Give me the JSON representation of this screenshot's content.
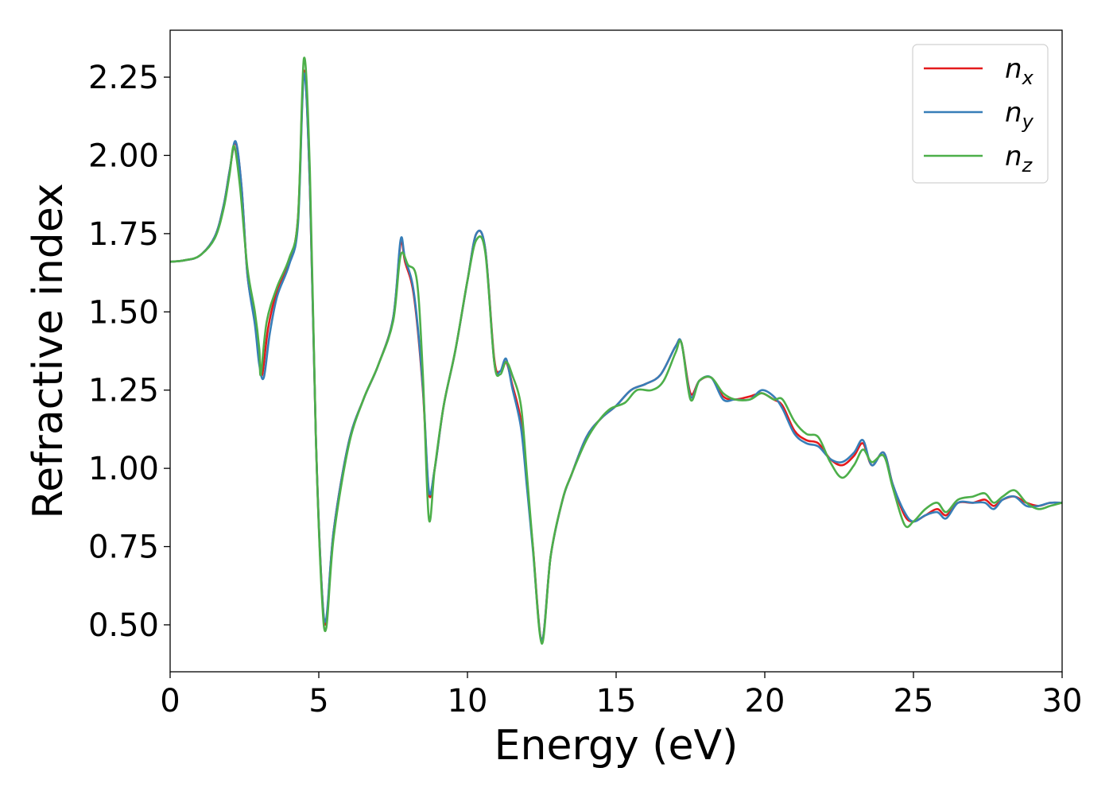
{
  "chart_data": {
    "type": "line",
    "xlabel": "Energy (eV)",
    "ylabel": "Refractive index",
    "xlim": [
      0,
      30
    ],
    "ylim": [
      0.35,
      2.4
    ],
    "xticks": [
      0,
      5,
      10,
      15,
      20,
      25,
      30
    ],
    "xtick_labels": [
      "0",
      "5",
      "10",
      "15",
      "20",
      "25",
      "30"
    ],
    "yticks": [
      0.5,
      0.75,
      1.0,
      1.25,
      1.5,
      1.75,
      2.0,
      2.25
    ],
    "ytick_labels": [
      "0.50",
      "0.75",
      "1.00",
      "1.25",
      "1.50",
      "1.75",
      "2.00",
      "2.25"
    ],
    "grid": false,
    "legend_position": "top-right",
    "series": [
      {
        "name": "n_x",
        "symbol": "n",
        "subscript": "x",
        "color": "#e41a1c",
        "points": [
          [
            0,
            1.66
          ],
          [
            0.5,
            1.665
          ],
          [
            1.0,
            1.68
          ],
          [
            1.5,
            1.74
          ],
          [
            1.8,
            1.84
          ],
          [
            2.0,
            1.95
          ],
          [
            2.2,
            2.04
          ],
          [
            2.4,
            1.9
          ],
          [
            2.6,
            1.62
          ],
          [
            2.85,
            1.47
          ],
          [
            3.0,
            1.34
          ],
          [
            3.1,
            1.3
          ],
          [
            3.3,
            1.45
          ],
          [
            3.6,
            1.57
          ],
          [
            4.0,
            1.66
          ],
          [
            4.3,
            1.8
          ],
          [
            4.5,
            2.27
          ],
          [
            4.7,
            1.9
          ],
          [
            4.9,
            1.1
          ],
          [
            5.1,
            0.62
          ],
          [
            5.25,
            0.51
          ],
          [
            5.5,
            0.8
          ],
          [
            6.0,
            1.08
          ],
          [
            6.5,
            1.22
          ],
          [
            7.0,
            1.33
          ],
          [
            7.5,
            1.48
          ],
          [
            7.75,
            1.72
          ],
          [
            7.9,
            1.66
          ],
          [
            8.2,
            1.55
          ],
          [
            8.5,
            1.25
          ],
          [
            8.7,
            0.92
          ],
          [
            8.9,
            1.0
          ],
          [
            9.2,
            1.2
          ],
          [
            9.6,
            1.38
          ],
          [
            10.0,
            1.6
          ],
          [
            10.3,
            1.75
          ],
          [
            10.6,
            1.7
          ],
          [
            10.9,
            1.35
          ],
          [
            11.1,
            1.31
          ],
          [
            11.3,
            1.34
          ],
          [
            11.5,
            1.27
          ],
          [
            11.8,
            1.15
          ],
          [
            12.0,
            0.95
          ],
          [
            12.2,
            0.75
          ],
          [
            12.5,
            0.45
          ],
          [
            12.8,
            0.72
          ],
          [
            13.2,
            0.9
          ],
          [
            13.5,
            0.98
          ],
          [
            14.0,
            1.1
          ],
          [
            14.5,
            1.16
          ],
          [
            15.0,
            1.2
          ],
          [
            15.5,
            1.25
          ],
          [
            16.0,
            1.27
          ],
          [
            16.5,
            1.3
          ],
          [
            17.0,
            1.39
          ],
          [
            17.2,
            1.4
          ],
          [
            17.5,
            1.24
          ],
          [
            17.8,
            1.28
          ],
          [
            18.2,
            1.29
          ],
          [
            18.6,
            1.23
          ],
          [
            19.0,
            1.22
          ],
          [
            19.5,
            1.23
          ],
          [
            19.9,
            1.24
          ],
          [
            20.3,
            1.22
          ],
          [
            20.6,
            1.2
          ],
          [
            21.0,
            1.12
          ],
          [
            21.4,
            1.09
          ],
          [
            21.8,
            1.08
          ],
          [
            22.2,
            1.03
          ],
          [
            22.6,
            1.01
          ],
          [
            23.0,
            1.04
          ],
          [
            23.3,
            1.08
          ],
          [
            23.6,
            1.01
          ],
          [
            24.0,
            1.05
          ],
          [
            24.3,
            0.95
          ],
          [
            24.7,
            0.85
          ],
          [
            25.0,
            0.83
          ],
          [
            25.4,
            0.85
          ],
          [
            25.8,
            0.87
          ],
          [
            26.1,
            0.85
          ],
          [
            26.5,
            0.89
          ],
          [
            27.0,
            0.89
          ],
          [
            27.4,
            0.9
          ],
          [
            27.7,
            0.88
          ],
          [
            28.0,
            0.9
          ],
          [
            28.4,
            0.91
          ],
          [
            28.8,
            0.89
          ],
          [
            29.2,
            0.88
          ],
          [
            29.6,
            0.89
          ],
          [
            30.0,
            0.89
          ]
        ]
      },
      {
        "name": "n_y",
        "symbol": "n",
        "subscript": "y",
        "color": "#377eb8",
        "points": [
          [
            0,
            1.66
          ],
          [
            0.5,
            1.665
          ],
          [
            1.0,
            1.68
          ],
          [
            1.5,
            1.74
          ],
          [
            1.8,
            1.84
          ],
          [
            2.0,
            1.95
          ],
          [
            2.2,
            2.045
          ],
          [
            2.4,
            1.9
          ],
          [
            2.6,
            1.62
          ],
          [
            2.85,
            1.46
          ],
          [
            3.0,
            1.33
          ],
          [
            3.15,
            1.29
          ],
          [
            3.35,
            1.43
          ],
          [
            3.6,
            1.55
          ],
          [
            4.0,
            1.65
          ],
          [
            4.3,
            1.78
          ],
          [
            4.5,
            2.26
          ],
          [
            4.7,
            1.9
          ],
          [
            4.9,
            1.1
          ],
          [
            5.1,
            0.62
          ],
          [
            5.25,
            0.52
          ],
          [
            5.5,
            0.8
          ],
          [
            6.0,
            1.08
          ],
          [
            6.5,
            1.22
          ],
          [
            7.0,
            1.33
          ],
          [
            7.5,
            1.48
          ],
          [
            7.75,
            1.73
          ],
          [
            7.9,
            1.67
          ],
          [
            8.2,
            1.56
          ],
          [
            8.5,
            1.26
          ],
          [
            8.7,
            0.93
          ],
          [
            8.9,
            1.0
          ],
          [
            9.2,
            1.2
          ],
          [
            9.6,
            1.38
          ],
          [
            10.0,
            1.6
          ],
          [
            10.3,
            1.75
          ],
          [
            10.6,
            1.7
          ],
          [
            10.9,
            1.34
          ],
          [
            11.1,
            1.31
          ],
          [
            11.3,
            1.35
          ],
          [
            11.5,
            1.26
          ],
          [
            11.8,
            1.13
          ],
          [
            12.0,
            0.94
          ],
          [
            12.2,
            0.74
          ],
          [
            12.5,
            0.45
          ],
          [
            12.8,
            0.72
          ],
          [
            13.2,
            0.9
          ],
          [
            13.5,
            0.98
          ],
          [
            14.0,
            1.1
          ],
          [
            14.5,
            1.16
          ],
          [
            15.0,
            1.2
          ],
          [
            15.5,
            1.25
          ],
          [
            16.0,
            1.27
          ],
          [
            16.5,
            1.3
          ],
          [
            17.0,
            1.39
          ],
          [
            17.2,
            1.4
          ],
          [
            17.5,
            1.23
          ],
          [
            17.8,
            1.28
          ],
          [
            18.2,
            1.29
          ],
          [
            18.6,
            1.22
          ],
          [
            19.0,
            1.22
          ],
          [
            19.5,
            1.22
          ],
          [
            19.9,
            1.25
          ],
          [
            20.3,
            1.23
          ],
          [
            20.6,
            1.19
          ],
          [
            21.0,
            1.11
          ],
          [
            21.4,
            1.08
          ],
          [
            21.8,
            1.07
          ],
          [
            22.2,
            1.03
          ],
          [
            22.6,
            1.02
          ],
          [
            23.0,
            1.05
          ],
          [
            23.3,
            1.09
          ],
          [
            23.6,
            1.01
          ],
          [
            24.0,
            1.05
          ],
          [
            24.3,
            0.95
          ],
          [
            24.7,
            0.86
          ],
          [
            25.0,
            0.83
          ],
          [
            25.4,
            0.85
          ],
          [
            25.8,
            0.86
          ],
          [
            26.1,
            0.84
          ],
          [
            26.5,
            0.89
          ],
          [
            27.0,
            0.89
          ],
          [
            27.4,
            0.89
          ],
          [
            27.7,
            0.87
          ],
          [
            28.0,
            0.9
          ],
          [
            28.4,
            0.91
          ],
          [
            28.8,
            0.88
          ],
          [
            29.2,
            0.88
          ],
          [
            29.6,
            0.89
          ],
          [
            30.0,
            0.89
          ]
        ]
      },
      {
        "name": "n_z",
        "symbol": "n",
        "subscript": "z",
        "color": "#4daf4a",
        "points": [
          [
            0,
            1.66
          ],
          [
            0.5,
            1.665
          ],
          [
            1.0,
            1.68
          ],
          [
            1.5,
            1.735
          ],
          [
            1.8,
            1.83
          ],
          [
            2.0,
            1.94
          ],
          [
            2.15,
            2.03
          ],
          [
            2.35,
            1.9
          ],
          [
            2.6,
            1.64
          ],
          [
            2.85,
            1.5
          ],
          [
            3.0,
            1.38
          ],
          [
            3.05,
            1.3
          ],
          [
            3.25,
            1.47
          ],
          [
            3.6,
            1.58
          ],
          [
            4.0,
            1.67
          ],
          [
            4.3,
            1.8
          ],
          [
            4.5,
            2.31
          ],
          [
            4.7,
            1.95
          ],
          [
            4.9,
            1.1
          ],
          [
            5.1,
            0.6
          ],
          [
            5.25,
            0.49
          ],
          [
            5.5,
            0.78
          ],
          [
            6.0,
            1.07
          ],
          [
            6.5,
            1.22
          ],
          [
            7.0,
            1.33
          ],
          [
            7.5,
            1.47
          ],
          [
            7.75,
            1.68
          ],
          [
            8.0,
            1.65
          ],
          [
            8.3,
            1.6
          ],
          [
            8.5,
            1.3
          ],
          [
            8.7,
            0.84
          ],
          [
            8.9,
            1.0
          ],
          [
            9.2,
            1.2
          ],
          [
            9.6,
            1.38
          ],
          [
            10.0,
            1.6
          ],
          [
            10.3,
            1.73
          ],
          [
            10.6,
            1.69
          ],
          [
            10.9,
            1.34
          ],
          [
            11.1,
            1.3
          ],
          [
            11.3,
            1.34
          ],
          [
            11.5,
            1.3
          ],
          [
            11.8,
            1.2
          ],
          [
            12.0,
            0.98
          ],
          [
            12.2,
            0.75
          ],
          [
            12.5,
            0.44
          ],
          [
            12.8,
            0.72
          ],
          [
            13.2,
            0.9
          ],
          [
            13.5,
            0.98
          ],
          [
            14.0,
            1.09
          ],
          [
            14.4,
            1.15
          ],
          [
            14.8,
            1.19
          ],
          [
            15.3,
            1.21
          ],
          [
            15.7,
            1.25
          ],
          [
            16.2,
            1.25
          ],
          [
            16.6,
            1.28
          ],
          [
            17.0,
            1.37
          ],
          [
            17.2,
            1.4
          ],
          [
            17.5,
            1.22
          ],
          [
            17.8,
            1.28
          ],
          [
            18.2,
            1.29
          ],
          [
            18.6,
            1.24
          ],
          [
            19.0,
            1.22
          ],
          [
            19.5,
            1.22
          ],
          [
            19.9,
            1.24
          ],
          [
            20.3,
            1.22
          ],
          [
            20.6,
            1.22
          ],
          [
            21.0,
            1.15
          ],
          [
            21.4,
            1.11
          ],
          [
            21.8,
            1.1
          ],
          [
            22.2,
            1.02
          ],
          [
            22.6,
            0.97
          ],
          [
            23.0,
            1.01
          ],
          [
            23.3,
            1.06
          ],
          [
            23.6,
            1.02
          ],
          [
            24.0,
            1.04
          ],
          [
            24.3,
            0.94
          ],
          [
            24.7,
            0.82
          ],
          [
            25.0,
            0.83
          ],
          [
            25.4,
            0.87
          ],
          [
            25.8,
            0.89
          ],
          [
            26.1,
            0.86
          ],
          [
            26.5,
            0.9
          ],
          [
            27.0,
            0.91
          ],
          [
            27.4,
            0.92
          ],
          [
            27.7,
            0.89
          ],
          [
            28.0,
            0.91
          ],
          [
            28.4,
            0.93
          ],
          [
            28.8,
            0.89
          ],
          [
            29.2,
            0.87
          ],
          [
            29.6,
            0.88
          ],
          [
            30.0,
            0.89
          ]
        ]
      }
    ]
  }
}
